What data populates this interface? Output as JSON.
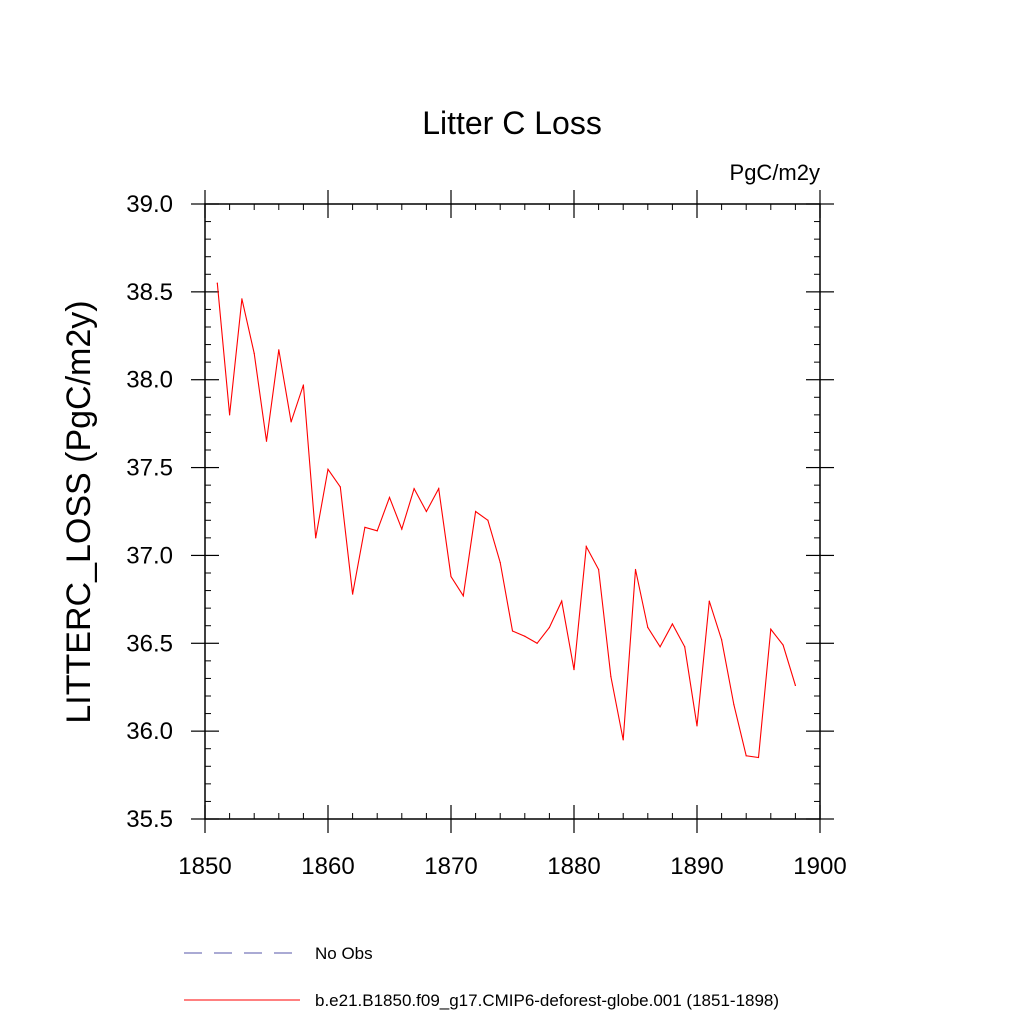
{
  "chart_data": {
    "type": "line",
    "title": "Litter C Loss",
    "units": "PgC/m2y",
    "ylabel": "LITTERC_LOSS  (PgC/m2y)",
    "xlabel": "",
    "xlim": [
      1850,
      1900
    ],
    "ylim": [
      35.5,
      39.0
    ],
    "x_ticks": [
      1850,
      1860,
      1870,
      1880,
      1890,
      1900
    ],
    "x_tick_labels": [
      "1850",
      "1860",
      "1870",
      "1880",
      "1890",
      "1900"
    ],
    "y_ticks": [
      35.5,
      36.0,
      36.5,
      37.0,
      37.5,
      38.0,
      38.5,
      39.0
    ],
    "y_tick_labels": [
      "35.5",
      "36.0",
      "36.5",
      "37.0",
      "37.5",
      "38.0",
      "38.5",
      "39.0"
    ],
    "grid": false,
    "series": [
      {
        "name": "b.e21.B1850.f09_g17.CMIP6-deforest-globe.001 (1851-1898)",
        "color": "#ff0000",
        "style": "solid",
        "x": [
          1851,
          1852,
          1853,
          1854,
          1855,
          1856,
          1857,
          1858,
          1859,
          1860,
          1861,
          1862,
          1863,
          1864,
          1865,
          1866,
          1867,
          1868,
          1869,
          1870,
          1871,
          1872,
          1873,
          1874,
          1875,
          1876,
          1877,
          1878,
          1879,
          1880,
          1881,
          1882,
          1883,
          1884,
          1885,
          1886,
          1887,
          1888,
          1889,
          1890,
          1891,
          1892,
          1893,
          1894,
          1895,
          1896,
          1897,
          1898
        ],
        "values": [
          38.55,
          37.8,
          38.46,
          38.15,
          37.65,
          38.17,
          37.76,
          37.97,
          37.1,
          37.49,
          37.39,
          36.78,
          37.16,
          37.14,
          37.33,
          37.15,
          37.38,
          37.25,
          37.38,
          36.88,
          36.77,
          37.25,
          37.2,
          36.96,
          36.57,
          36.54,
          36.5,
          36.59,
          36.74,
          36.35,
          37.05,
          36.92,
          36.31,
          35.95,
          36.92,
          36.59,
          36.48,
          36.61,
          36.48,
          36.03,
          36.74,
          36.52,
          36.15,
          35.86,
          35.85,
          36.58,
          36.49,
          36.26
        ]
      }
    ],
    "legend": [
      {
        "label": "No Obs",
        "color": "#5555aa",
        "style": "dashed"
      },
      {
        "label": "b.e21.B1850.f09_g17.CMIP6-deforest-globe.001 (1851-1898)",
        "color": "#ff0000",
        "style": "solid"
      }
    ]
  }
}
